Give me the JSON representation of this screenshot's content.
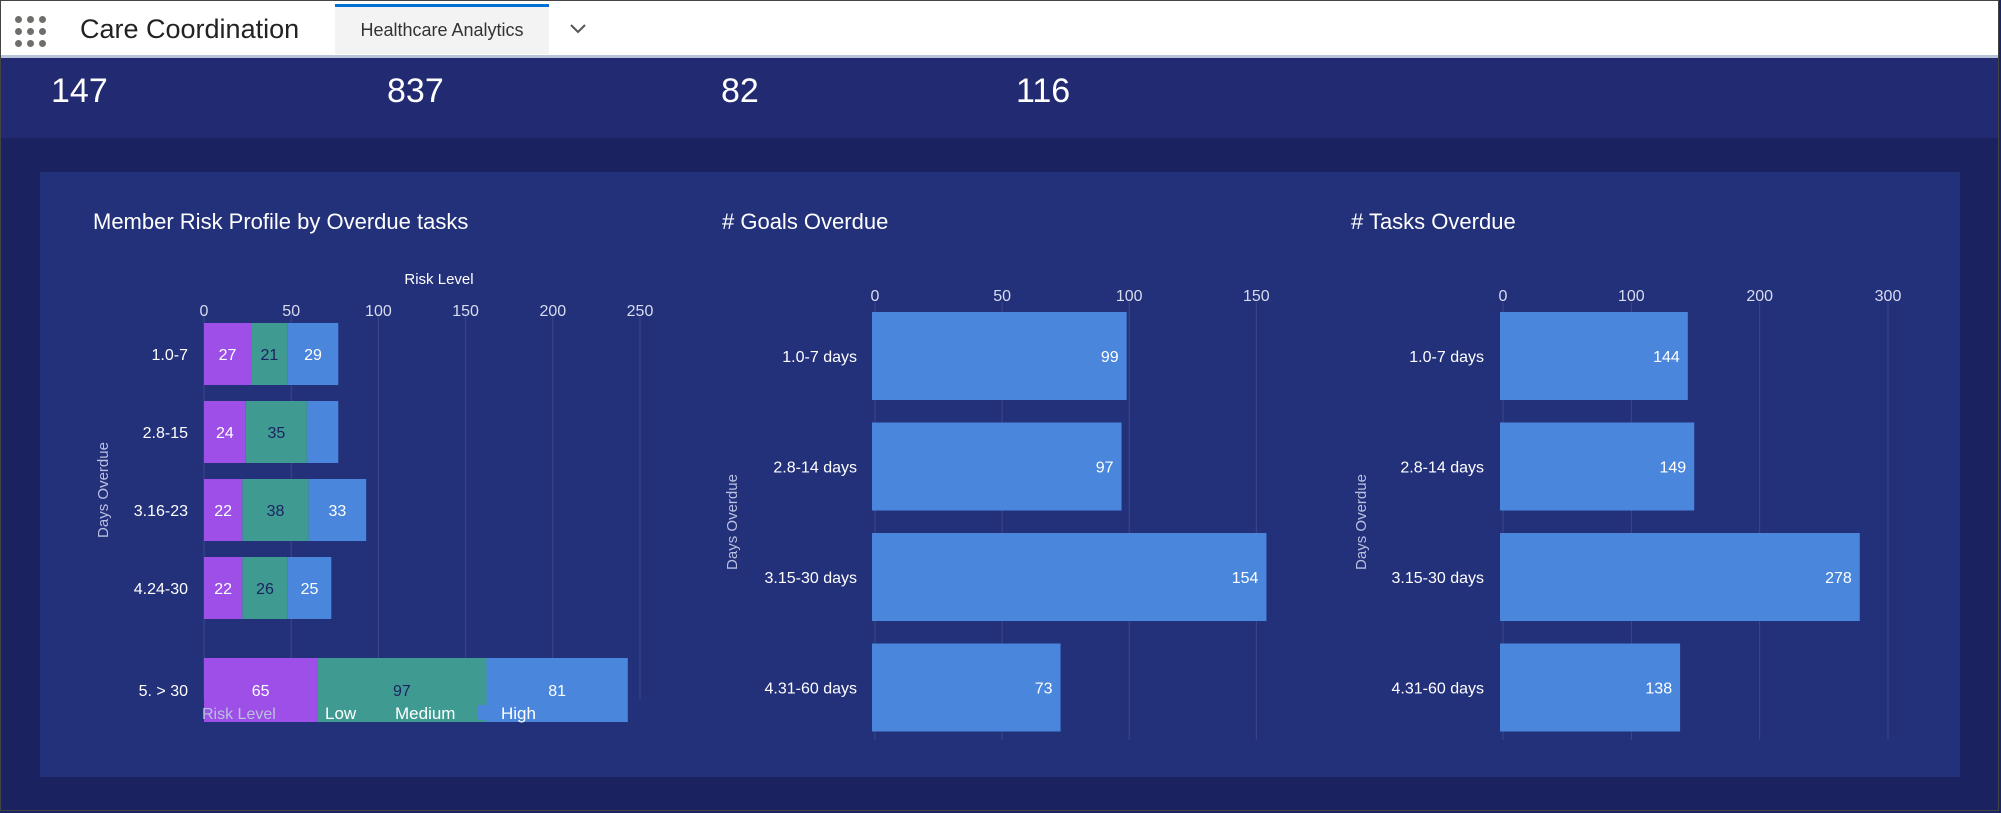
{
  "header": {
    "app_name": "Care Coordination",
    "tab_label": "Healthcare Analytics"
  },
  "kpis": [
    "147",
    "837",
    "82",
    "116"
  ],
  "colors": {
    "low": "#9d4fe8",
    "medium": "#3f9b91",
    "high": "#4a86dc",
    "bar": "#4a86dc",
    "card": "#23307a",
    "text": "#ffffff"
  },
  "chart_data": [
    {
      "type": "bar",
      "orientation": "horizontal",
      "stacked": true,
      "title": "Member Risk Profile by Overdue tasks",
      "xlabel": "Risk Level",
      "ylabel": "Days Overdue",
      "xlim": [
        0,
        250
      ],
      "xticks": [
        0,
        50,
        100,
        150,
        200,
        250
      ],
      "categories": [
        "1.0-7",
        "2.8-15",
        "3.16-23",
        "4.24-30",
        "5. > 30"
      ],
      "series": [
        {
          "name": "Low",
          "color": "#9d4fe8",
          "values": [
            27,
            24,
            22,
            22,
            65
          ],
          "labels": [
            "27",
            "24",
            "22",
            "22",
            "65"
          ]
        },
        {
          "name": "Medium",
          "color": "#3f9b91",
          "values": [
            21,
            35,
            38,
            26,
            97
          ],
          "labels": [
            "21",
            "35",
            "38",
            "26",
            "97"
          ]
        },
        {
          "name": "High",
          "color": "#4a86dc",
          "values": [
            29,
            18,
            33,
            25,
            81
          ],
          "labels": [
            "29",
            "",
            "33",
            "25",
            "81"
          ]
        }
      ],
      "legend_title": "Risk Level",
      "legend_position": "bottom-left",
      "grid": true
    },
    {
      "type": "bar",
      "orientation": "horizontal",
      "title": "# Goals Overdue",
      "xlabel": "",
      "ylabel": "Days Overdue",
      "xlim": [
        0,
        155
      ],
      "xticks": [
        0,
        50,
        100,
        150
      ],
      "categories": [
        "1.0-7 days",
        "2.8-14 days",
        "3.15-30 days",
        "4.31-60 days"
      ],
      "values": [
        99,
        97,
        154,
        73
      ],
      "labels": [
        "99",
        "97",
        "154",
        "73"
      ],
      "color": "#4a86dc",
      "grid": true
    },
    {
      "type": "bar",
      "orientation": "horizontal",
      "title": "# Tasks Overdue",
      "xlabel": "",
      "ylabel": "Days Overdue",
      "xlim": [
        0,
        300
      ],
      "xticks": [
        0,
        100,
        200,
        300
      ],
      "categories": [
        "1.0-7 days",
        "2.8-14 days",
        "3.15-30 days",
        "4.31-60 days"
      ],
      "values": [
        144,
        149,
        278,
        138
      ],
      "labels": [
        "144",
        "149",
        "278",
        "138"
      ],
      "color": "#4a86dc",
      "grid": true
    }
  ]
}
